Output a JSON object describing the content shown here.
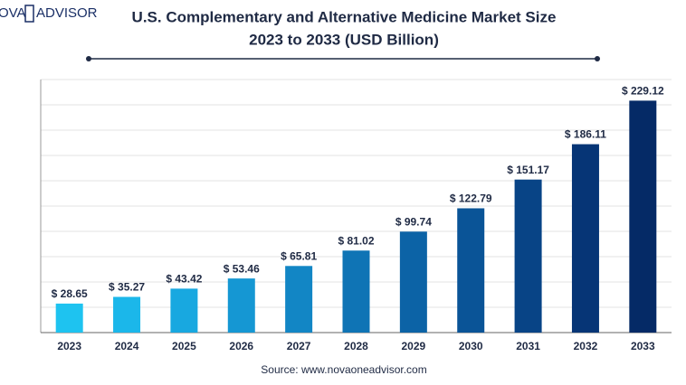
{
  "logo": {
    "left": "OVA",
    "right": "ADVISOR"
  },
  "chart_data": {
    "type": "bar",
    "title": "U.S. Complementary and Alternative Medicine Market Size",
    "subtitle": "2023 to 2033 (USD Billion)",
    "source": "Source: www.novaoneadvisor.com",
    "categories": [
      "2023",
      "2024",
      "2025",
      "2026",
      "2027",
      "2028",
      "2029",
      "2030",
      "2031",
      "2032",
      "2033"
    ],
    "values": [
      28.65,
      35.27,
      43.42,
      53.46,
      65.81,
      81.02,
      99.74,
      122.79,
      151.17,
      186.11,
      229.12
    ],
    "value_labels": [
      "$ 28.65",
      "$ 35.27",
      "$ 43.42",
      "$ 53.46",
      "$ 65.81",
      "$ 81.02",
      "$ 99.74",
      "$ 122.79",
      "$ 151.17",
      "$ 186.11",
      "$ 229.12"
    ],
    "colors": [
      "#1ec3f0",
      "#1bb7ea",
      "#18a8e0",
      "#1597d3",
      "#1286c5",
      "#0f74b5",
      "#0c63a6",
      "#0a5497",
      "#084486",
      "#063576",
      "#052a66"
    ],
    "ylim": [
      0,
      250
    ]
  }
}
